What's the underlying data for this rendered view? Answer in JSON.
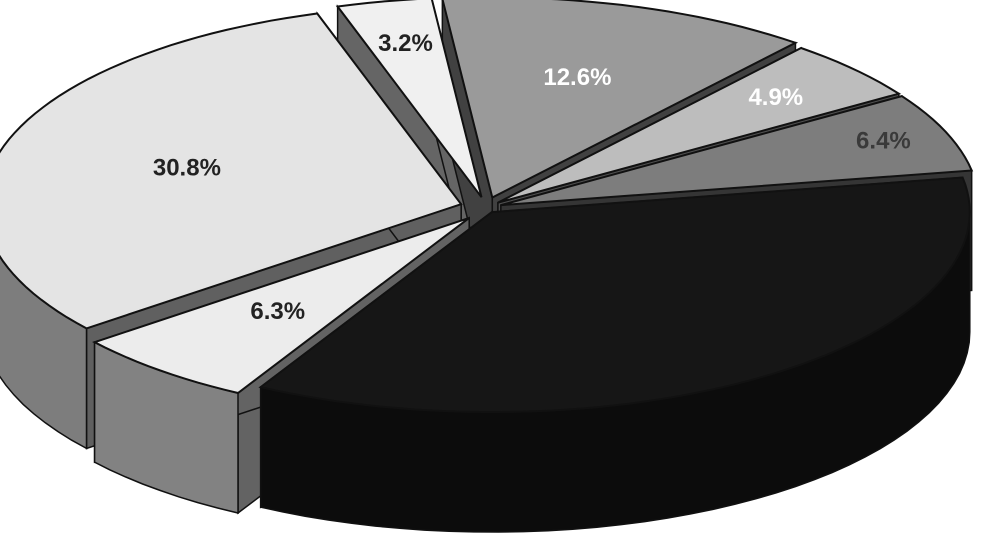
{
  "chart_data": {
    "type": "pie",
    "title": "",
    "style": "3d-exploded",
    "slices": [
      {
        "label": "12.6%",
        "value": 12.6,
        "color": "#9a9a9a",
        "label_color": "#ffffff"
      },
      {
        "label": "4.9%",
        "value": 4.9,
        "color": "#bdbdbd",
        "label_color": "#ffffff"
      },
      {
        "label": "6.4%",
        "value": 6.4,
        "color": "#7d7d7d",
        "label_color": "#3a3a3a"
      },
      {
        "label": "",
        "value": 35.8,
        "color": "#161616",
        "label_color": "#161616"
      },
      {
        "label": "6.3%",
        "value": 6.3,
        "color": "#ececec",
        "label_color": "#222222"
      },
      {
        "label": "30.8%",
        "value": 30.8,
        "color": "#e4e4e4",
        "label_color": "#222222"
      },
      {
        "label": "3.2%",
        "value": 3.2,
        "color": "#f0f0f0",
        "label_color": "#222222"
      }
    ]
  }
}
